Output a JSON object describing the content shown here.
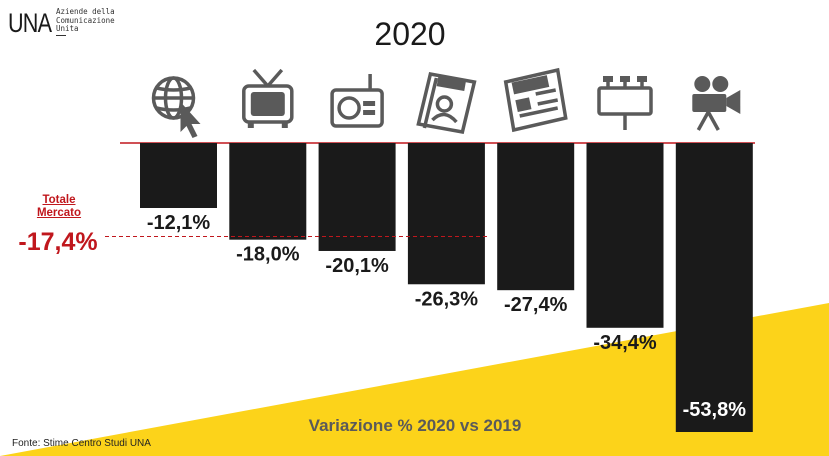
{
  "logo": {
    "mark": "UNA",
    "tagline": [
      "Aziende della",
      "Comunicazione",
      "Unita"
    ]
  },
  "header": {
    "title": "2020"
  },
  "footer": {
    "subtitle": "Variazione % 2020 vs 2019",
    "source": "Fonte: Stime Centro Studi UNA"
  },
  "total_market": {
    "label_line1": "Totale",
    "label_line2": "Mercato",
    "value_label": "-17,4%"
  },
  "colors": {
    "bar": "#1a1a1a",
    "accent_red": "#c0171d",
    "yellow": "#fcd31a",
    "icon": "#5a5a5a"
  },
  "chart_data": {
    "type": "bar",
    "orientation": "vertical-negative",
    "title": "2020",
    "categories": [
      "internet-icon",
      "tv-icon",
      "radio-icon",
      "magazine-icon",
      "newspaper-icon",
      "billboard-icon",
      "cinema-camera-icon"
    ],
    "values": [
      -12.1,
      -18.0,
      -20.1,
      -26.3,
      -27.4,
      -34.4,
      -53.8
    ],
    "data_labels": [
      "-12,1%",
      "-18,0%",
      "-20,1%",
      "-26,3%",
      "-27,4%",
      "-34,4%",
      "-53,8%"
    ],
    "reference_line": {
      "value": -17.4,
      "label": "-17,4%"
    },
    "ylim": [
      -53.8,
      0
    ],
    "grid": false,
    "legend": "none"
  }
}
